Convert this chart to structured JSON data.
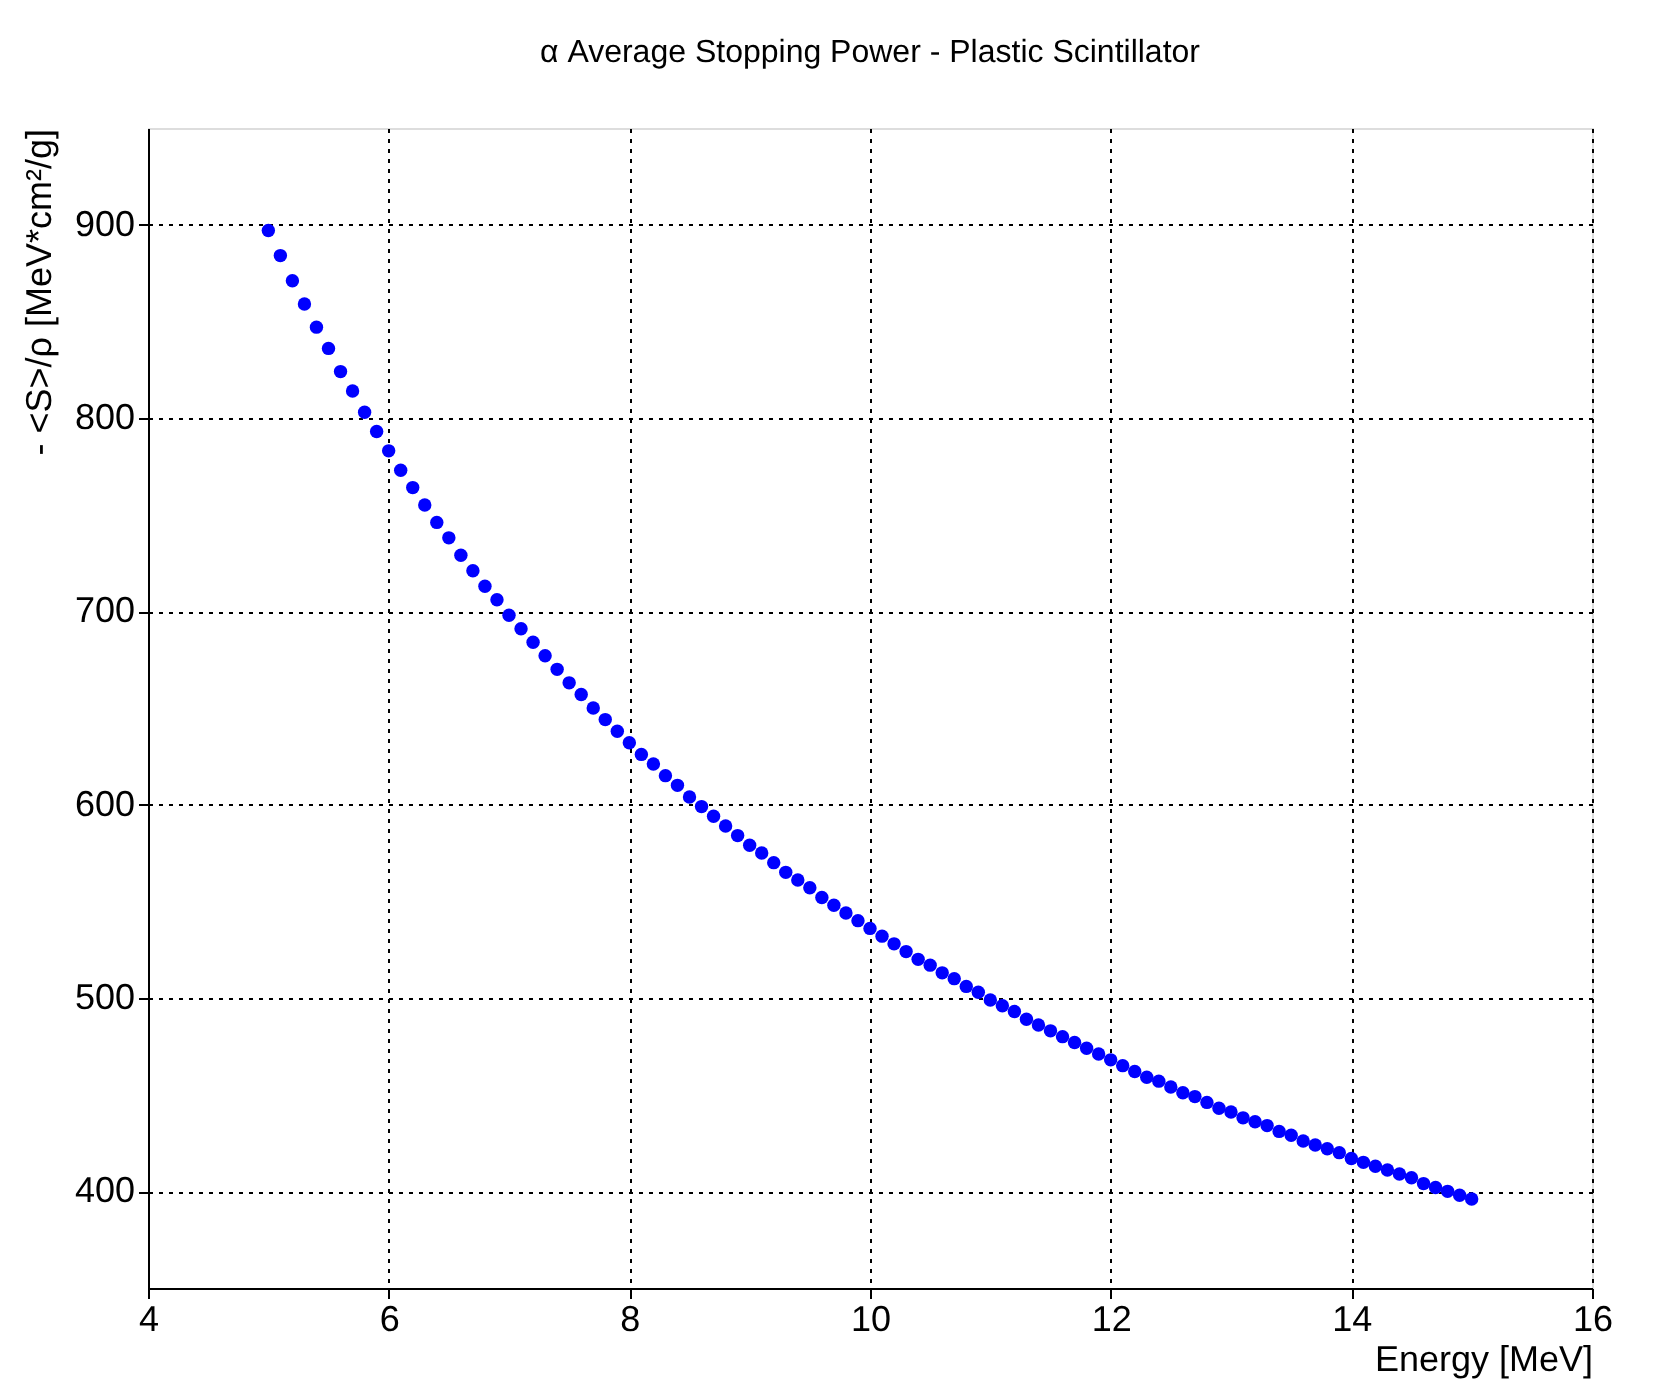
{
  "chart_data": {
    "type": "scatter",
    "title": "α Average Stopping Power - Plastic Scintillator",
    "xlabel": "Energy [MeV]",
    "ylabel": "- <S>/ρ [MeV*cm²/g]",
    "x": [
      5.0,
      5.1,
      5.2,
      5.3,
      5.4,
      5.5,
      5.6,
      5.7,
      5.8,
      5.9,
      6.0,
      6.1,
      6.2,
      6.3,
      6.4,
      6.5,
      6.6,
      6.7,
      6.8,
      6.9,
      7.0,
      7.1,
      7.2,
      7.3,
      7.4,
      7.5,
      7.6,
      7.7,
      7.8,
      7.9,
      8.0,
      8.1,
      8.2,
      8.3,
      8.4,
      8.5,
      8.6,
      8.7,
      8.8,
      8.9,
      9.0,
      9.1,
      9.2,
      9.3,
      9.4,
      9.5,
      9.6,
      9.7,
      9.8,
      9.9,
      10.0,
      10.1,
      10.2,
      10.3,
      10.4,
      10.5,
      10.6,
      10.7,
      10.8,
      10.9,
      11.0,
      11.1,
      11.2,
      11.3,
      11.4,
      11.5,
      11.6,
      11.7,
      11.8,
      11.9,
      12.0,
      12.1,
      12.2,
      12.3,
      12.4,
      12.5,
      12.6,
      12.7,
      12.8,
      12.9,
      13.0,
      13.1,
      13.2,
      13.3,
      13.4,
      13.5,
      13.6,
      13.7,
      13.8,
      13.9,
      14.0,
      14.1,
      14.2,
      14.3,
      14.4,
      14.5,
      14.6,
      14.7,
      14.8,
      14.9,
      15.0
    ],
    "series": [
      {
        "color": "#0000ff",
        "values": [
          897,
          884,
          871,
          859,
          847,
          836,
          824,
          814,
          803,
          793,
          783,
          773,
          764,
          755,
          746,
          738,
          729,
          721,
          713,
          706,
          698,
          691,
          684,
          677,
          670,
          663,
          657,
          650,
          644,
          638,
          632,
          626,
          621,
          615,
          610,
          604,
          599,
          594,
          589,
          584,
          579,
          575,
          570,
          565,
          561,
          557,
          552,
          548,
          544,
          540,
          536,
          532,
          528,
          524,
          520,
          517,
          513,
          510,
          506,
          503,
          499,
          496,
          493,
          489,
          486,
          483,
          480,
          477,
          474,
          471,
          468,
          465,
          462,
          459,
          457,
          454,
          451,
          449,
          446,
          443,
          441,
          438,
          436,
          434,
          431,
          429,
          426,
          424,
          422,
          420,
          417,
          415,
          413,
          411,
          409,
          407,
          404,
          402,
          400,
          398,
          396
        ]
      }
    ],
    "xlim": [
      4,
      16
    ],
    "xticks": [
      4,
      6,
      8,
      10,
      12,
      14,
      16
    ],
    "ylim": [
      350,
      950
    ],
    "yticks": [
      400,
      500,
      600,
      700,
      800,
      900
    ],
    "grid": true,
    "marker": "circle"
  }
}
